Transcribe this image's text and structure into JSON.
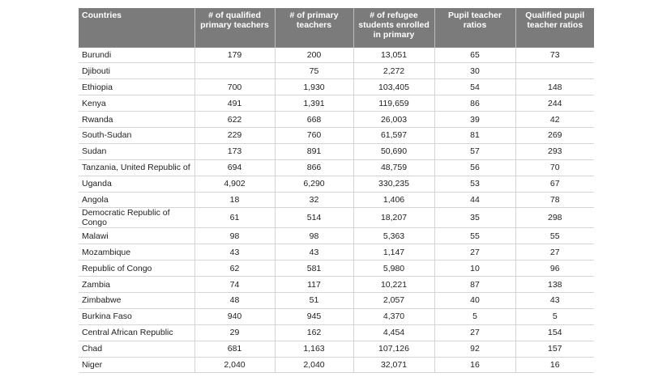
{
  "table": {
    "header": [
      "Countries",
      "# of qualified primary teachers",
      "# of primary teachers",
      "# of refugee students enrolled in primary",
      "Pupil teacher ratios",
      "Qualified pupil teacher ratios"
    ],
    "rows": [
      [
        "Burundi",
        "179",
        "200",
        "13,051",
        "65",
        "73"
      ],
      [
        "Djibouti",
        null,
        "75",
        "2,272",
        "30",
        null
      ],
      [
        "Ethiopia",
        "700",
        "1,930",
        "103,405",
        "54",
        "148"
      ],
      [
        "Kenya",
        "491",
        "1,391",
        "119,659",
        "86",
        "244"
      ],
      [
        "Rwanda",
        "622",
        "668",
        "26,003",
        "39",
        "42"
      ],
      [
        "South-Sudan",
        "229",
        "760",
        "61,597",
        "81",
        "269"
      ],
      [
        "Sudan",
        "173",
        "891",
        "50,690",
        "57",
        "293"
      ],
      [
        "Tanzania, United Republic of",
        "694",
        "866",
        "48,759",
        "56",
        "70"
      ],
      [
        "Uganda",
        "4,902",
        "6,290",
        "330,235",
        "53",
        "67"
      ],
      [
        "Angola",
        "18",
        "32",
        "1,406",
        "44",
        "78"
      ],
      [
        "Democratic Republic of Congo",
        "61",
        "514",
        "18,207",
        "35",
        "298"
      ],
      [
        "Malawi",
        "98",
        "98",
        "5,363",
        "55",
        "55"
      ],
      [
        "Mozambique",
        "43",
        "43",
        "1,147",
        "27",
        "27"
      ],
      [
        "Republic of Congo",
        "62",
        "581",
        "5,980",
        "10",
        "96"
      ],
      [
        "Zambia",
        "74",
        "117",
        "10,221",
        "87",
        "138"
      ],
      [
        "Zimbabwe",
        "48",
        "51",
        "2,057",
        "40",
        "43"
      ],
      [
        "Burkina Faso",
        "940",
        "945",
        "4,370",
        "5",
        "5"
      ],
      [
        "Central African Republic",
        "29",
        "162",
        "4,454",
        "27",
        "154"
      ],
      [
        "Chad",
        "681",
        "1,163",
        "107,126",
        "92",
        "157"
      ],
      [
        "Niger",
        "2,040",
        "2,040",
        "32,071",
        "16",
        "16"
      ]
    ]
  }
}
